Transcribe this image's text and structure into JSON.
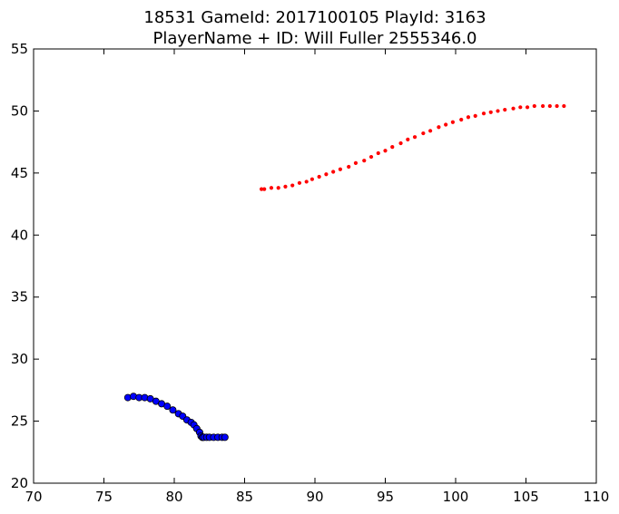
{
  "chart_data": {
    "type": "scatter",
    "title": [
      "18531 GameId: 2017100105 PlayId: 3163",
      "PlayerName + ID: Will Fuller 2555346.0"
    ],
    "xlabel": "",
    "ylabel": "",
    "xlim": [
      70,
      110
    ],
    "ylim": [
      20,
      55
    ],
    "xticks": [
      "70",
      "75",
      "80",
      "85",
      "90",
      "95",
      "100",
      "105",
      "110"
    ],
    "yticks": [
      "20",
      "25",
      "30",
      "35",
      "40",
      "45",
      "50",
      "55"
    ],
    "grid": false,
    "legend": false,
    "series": [
      {
        "color": "#ff0000",
        "marker": "small-dot",
        "x": [
          86.2,
          86.4,
          86.9,
          87.4,
          87.9,
          88.4,
          88.9,
          89.4,
          89.8,
          90.3,
          90.8,
          91.3,
          91.8,
          92.4,
          92.9,
          93.5,
          94.0,
          94.5,
          95.0,
          95.5,
          96.1,
          96.6,
          97.1,
          97.7,
          98.2,
          98.8,
          99.3,
          99.8,
          100.4,
          100.9,
          101.4,
          102.0,
          102.5,
          103.0,
          103.5,
          104.1,
          104.6,
          105.1,
          105.6,
          106.2,
          106.7,
          107.2,
          107.7
        ],
        "y": [
          43.7,
          43.7,
          43.8,
          43.8,
          43.9,
          44.0,
          44.2,
          44.3,
          44.5,
          44.7,
          44.9,
          45.1,
          45.3,
          45.5,
          45.8,
          46.0,
          46.3,
          46.6,
          46.8,
          47.1,
          47.4,
          47.7,
          47.9,
          48.2,
          48.4,
          48.7,
          48.9,
          49.1,
          49.3,
          49.5,
          49.6,
          49.8,
          49.9,
          50.0,
          50.1,
          50.2,
          50.3,
          50.3,
          50.4,
          50.4,
          50.4,
          50.4,
          50.4
        ]
      },
      {
        "color": "#0000ff",
        "marker": "circle",
        "x": [
          76.7,
          77.1,
          77.5,
          77.9,
          78.3,
          78.7,
          79.1,
          79.5,
          79.9,
          80.3,
          80.6,
          80.9,
          81.2,
          81.4,
          81.6,
          81.8,
          81.9,
          82.0,
          82.0,
          82.1,
          82.3,
          82.5,
          82.8,
          83.1,
          83.4,
          83.6
        ],
        "y": [
          26.9,
          27.0,
          26.9,
          26.9,
          26.8,
          26.6,
          26.4,
          26.2,
          25.9,
          25.6,
          25.4,
          25.1,
          24.9,
          24.7,
          24.4,
          24.1,
          23.8,
          23.7,
          23.7,
          23.7,
          23.7,
          23.7,
          23.7,
          23.7,
          23.7,
          23.7
        ]
      }
    ]
  }
}
